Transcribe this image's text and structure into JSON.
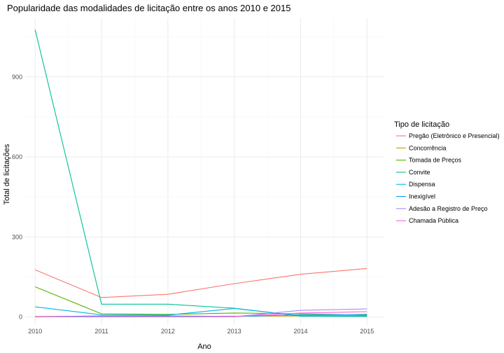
{
  "chart_data": {
    "type": "line",
    "title": "Popularidade das modalidades de licitação entre os anos 2010 e 2015",
    "xlabel": "Ano",
    "ylabel": "Total de licitações",
    "x": [
      2010,
      2011,
      2012,
      2013,
      2014,
      2015
    ],
    "x_tick_labels": [
      "2010",
      "2011",
      "2012",
      "2013",
      "2014",
      "2015"
    ],
    "y_ticks": [
      0,
      300,
      600,
      900
    ],
    "y_tick_labels": [
      "0",
      "300",
      "600",
      "900"
    ],
    "ylim": [
      -30,
      1120
    ],
    "xlim": [
      2009.85,
      2015.25
    ],
    "grid": true,
    "legend": {
      "title": "Tipo de licitação",
      "position": "right"
    },
    "series": [
      {
        "name": "Pregão (Eletrônico e Presencial)",
        "color": "#F8766D",
        "values": [
          177,
          73,
          85,
          125,
          160,
          182
        ]
      },
      {
        "name": "Concorrência",
        "color": "#C49A00",
        "values": [
          2,
          2,
          2,
          3,
          4,
          5
        ]
      },
      {
        "name": "Tomada de Preços",
        "color": "#53B400",
        "values": [
          113,
          12,
          10,
          15,
          12,
          8
        ]
      },
      {
        "name": "Convite",
        "color": "#00C094",
        "values": [
          1077,
          48,
          48,
          33,
          3,
          2
        ]
      },
      {
        "name": "Dispensa",
        "color": "#00B6EB",
        "values": [
          38,
          8,
          7,
          32,
          5,
          5
        ]
      },
      {
        "name": "Inexigível",
        "color": "#06A4FF",
        "values": [
          1,
          4,
          4,
          2,
          8,
          10
        ]
      },
      {
        "name": "Adesão a Registro de Preço",
        "color": "#A58AFF",
        "values": [
          1,
          1,
          1,
          1,
          25,
          30
        ]
      },
      {
        "name": "Chamada Pública",
        "color": "#FB61D7",
        "values": [
          1,
          1,
          1,
          2,
          15,
          20
        ]
      }
    ]
  }
}
